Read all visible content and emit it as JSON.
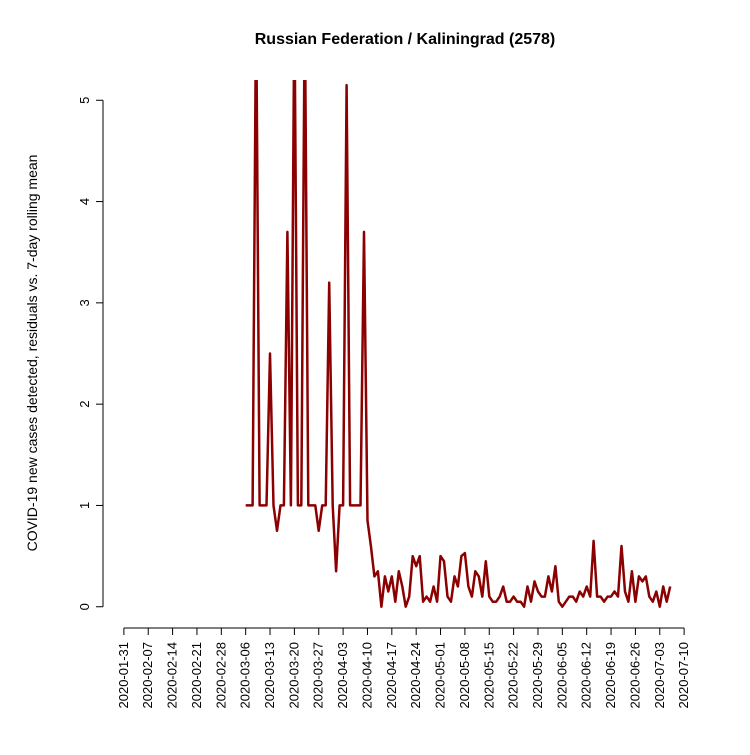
{
  "chart_data": {
    "type": "line",
    "title": "Russian Federation / Kaliningrad (2578)",
    "ylabel": "COVID-19 new cases detected, residuals vs. 7-day rolling mean",
    "xlim": [
      "2020-01-25",
      "2020-07-16"
    ],
    "xticks": [
      "2020-01-31",
      "2020-02-07",
      "2020-02-14",
      "2020-02-21",
      "2020-02-28",
      "2020-03-06",
      "2020-03-13",
      "2020-03-20",
      "2020-03-27",
      "2020-04-03",
      "2020-04-10",
      "2020-04-17",
      "2020-04-24",
      "2020-05-01",
      "2020-05-08",
      "2020-05-15",
      "2020-05-22",
      "2020-05-29",
      "2020-06-05",
      "2020-06-12",
      "2020-06-19",
      "2020-06-26",
      "2020-07-03",
      "2020-07-10"
    ],
    "ylim": [
      -0.2,
      5.2
    ],
    "yticks": [
      0,
      1,
      2,
      3,
      4,
      5
    ],
    "x": [
      "2020-03-06",
      "2020-03-07",
      "2020-03-08",
      "2020-03-09",
      "2020-03-10",
      "2020-03-11",
      "2020-03-12",
      "2020-03-13",
      "2020-03-14",
      "2020-03-15",
      "2020-03-16",
      "2020-03-17",
      "2020-03-18",
      "2020-03-19",
      "2020-03-20",
      "2020-03-21",
      "2020-03-22",
      "2020-03-23",
      "2020-03-24",
      "2020-03-25",
      "2020-03-26",
      "2020-03-27",
      "2020-03-28",
      "2020-03-29",
      "2020-03-30",
      "2020-03-31",
      "2020-04-01",
      "2020-04-02",
      "2020-04-03",
      "2020-04-04",
      "2020-04-05",
      "2020-04-06",
      "2020-04-07",
      "2020-04-08",
      "2020-04-09",
      "2020-04-10",
      "2020-04-11",
      "2020-04-12",
      "2020-04-13",
      "2020-04-14",
      "2020-04-15",
      "2020-04-16",
      "2020-04-17",
      "2020-04-18",
      "2020-04-19",
      "2020-04-20",
      "2020-04-21",
      "2020-04-22",
      "2020-04-23",
      "2020-04-24",
      "2020-04-25",
      "2020-04-26",
      "2020-04-27",
      "2020-04-28",
      "2020-04-29",
      "2020-04-30",
      "2020-05-01",
      "2020-05-02",
      "2020-05-03",
      "2020-05-04",
      "2020-05-05",
      "2020-05-06",
      "2020-05-07",
      "2020-05-08",
      "2020-05-09",
      "2020-05-10",
      "2020-05-11",
      "2020-05-12",
      "2020-05-13",
      "2020-05-14",
      "2020-05-15",
      "2020-05-16",
      "2020-05-17",
      "2020-05-18",
      "2020-05-19",
      "2020-05-20",
      "2020-05-21",
      "2020-05-22",
      "2020-05-23",
      "2020-05-24",
      "2020-05-25",
      "2020-05-26",
      "2020-05-27",
      "2020-05-28",
      "2020-05-29",
      "2020-05-30",
      "2020-05-31",
      "2020-06-01",
      "2020-06-02",
      "2020-06-03",
      "2020-06-04",
      "2020-06-05",
      "2020-06-06",
      "2020-06-07",
      "2020-06-08",
      "2020-06-09",
      "2020-06-10",
      "2020-06-11",
      "2020-06-12",
      "2020-06-13",
      "2020-06-14",
      "2020-06-15",
      "2020-06-16",
      "2020-06-17",
      "2020-06-18",
      "2020-06-19",
      "2020-06-20",
      "2020-06-21",
      "2020-06-22",
      "2020-06-23",
      "2020-06-24",
      "2020-06-25",
      "2020-06-26",
      "2020-06-27",
      "2020-06-28",
      "2020-06-29",
      "2020-06-30",
      "2020-07-01",
      "2020-07-02",
      "2020-07-03",
      "2020-07-04",
      "2020-07-05",
      "2020-07-06"
    ],
    "series": [
      {
        "color": "#8b0000",
        "values": [
          1,
          1,
          1,
          6,
          1,
          1,
          1,
          2.5,
          1,
          0.75,
          1,
          1,
          3.7,
          1,
          6,
          1,
          1,
          6,
          1,
          1,
          1,
          0.75,
          1,
          1,
          3.2,
          1,
          0.35,
          1,
          1,
          5.15,
          1,
          1,
          1,
          1,
          3.7,
          0.85,
          0.6,
          0.3,
          0.35,
          0,
          0.3,
          0.15,
          0.3,
          0.05,
          0.35,
          0.2,
          0,
          0.1,
          0.5,
          0.4,
          0.5,
          0.05,
          0.1,
          0.05,
          0.2,
          0.05,
          0.5,
          0.45,
          0.1,
          0.05,
          0.3,
          0.2,
          0.5,
          0.53,
          0.2,
          0.1,
          0.35,
          0.3,
          0.1,
          0.45,
          0.1,
          0.05,
          0.05,
          0.1,
          0.2,
          0.05,
          0.05,
          0.1,
          0.05,
          0.05,
          0,
          0.2,
          0.05,
          0.25,
          0.15,
          0.1,
          0.1,
          0.3,
          0.15,
          0.4,
          0.05,
          0,
          0.05,
          0.1,
          0.1,
          0.05,
          0.15,
          0.1,
          0.2,
          0.1,
          0.65,
          0.1,
          0.1,
          0.05,
          0.1,
          0.1,
          0.15,
          0.1,
          0.6,
          0.15,
          0.05,
          0.35,
          0.05,
          0.3,
          0.25,
          0.3,
          0.1,
          0.05,
          0.15,
          0,
          0.2,
          0.05,
          0.2
        ]
      }
    ]
  }
}
